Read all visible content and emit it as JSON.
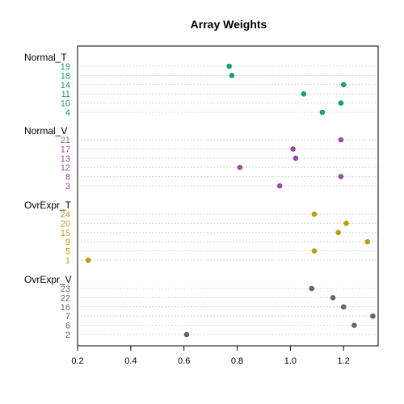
{
  "chart_data": {
    "type": "scatter",
    "title": "Array Weights",
    "xlabel": "",
    "ylabel": "",
    "xlim": [
      0.2,
      1.33
    ],
    "x_ticks": [
      "0.2",
      "0.4",
      "0.6",
      "0.8",
      "1.0",
      "1.2"
    ],
    "grid": true,
    "groups": [
      {
        "name": "Normal_T",
        "color": "#1b9e77",
        "rows": [
          {
            "label": "19",
            "value": 0.77
          },
          {
            "label": "18",
            "value": 0.78
          },
          {
            "label": "14",
            "value": 1.2
          },
          {
            "label": "11",
            "value": 1.05
          },
          {
            "label": "10",
            "value": 1.19
          },
          {
            "label": "4",
            "value": 1.12
          }
        ]
      },
      {
        "name": "Normal_V",
        "color": "#984ea3",
        "rows": [
          {
            "label": "21",
            "value": 1.19
          },
          {
            "label": "17",
            "value": 1.01
          },
          {
            "label": "13",
            "value": 1.02
          },
          {
            "label": "12",
            "value": 0.81
          },
          {
            "label": "8",
            "value": 1.19
          },
          {
            "label": "3",
            "value": 0.96
          }
        ]
      },
      {
        "name": "OvrExpr_T",
        "color": "#b8a00c",
        "rows": [
          {
            "label": "24",
            "value": 1.09
          },
          {
            "label": "20",
            "value": 1.21
          },
          {
            "label": "15",
            "value": 1.18
          },
          {
            "label": "9",
            "value": 1.29
          },
          {
            "label": "5",
            "value": 1.09
          },
          {
            "label": "1",
            "value": 0.24
          }
        ]
      },
      {
        "name": "OvrExpr_V",
        "color": "#666666",
        "rows": [
          {
            "label": "23",
            "value": 1.08
          },
          {
            "label": "22",
            "value": 1.16
          },
          {
            "label": "16",
            "value": 1.2
          },
          {
            "label": "7",
            "value": 1.31
          },
          {
            "label": "6",
            "value": 1.24
          },
          {
            "label": "2",
            "value": 0.61
          }
        ]
      }
    ]
  }
}
